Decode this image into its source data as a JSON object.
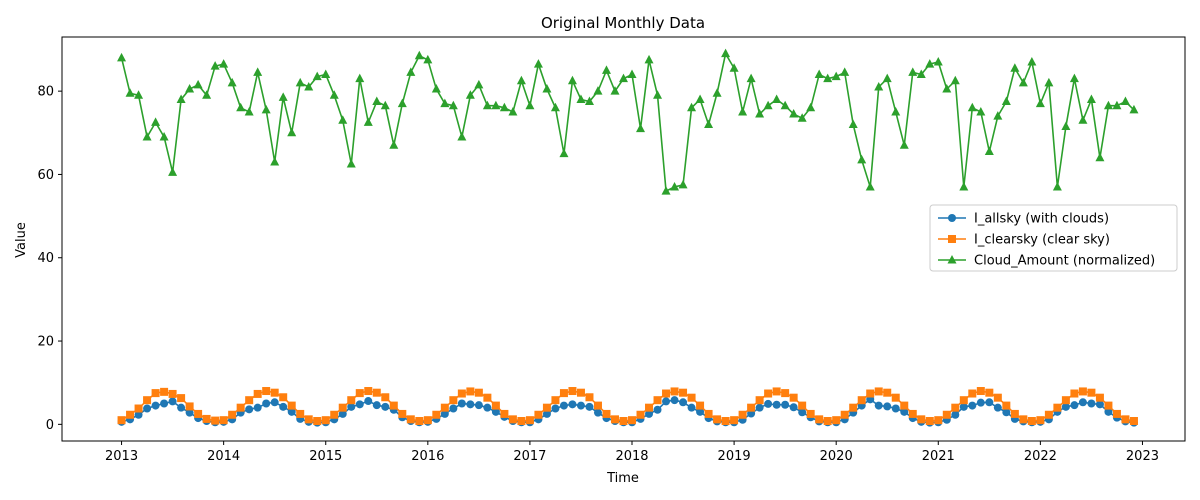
{
  "chart_data": {
    "type": "line",
    "title": "Original Monthly Data",
    "xlabel": "Time",
    "ylabel": "Value",
    "x_start": "2013-01",
    "x_frequency": "monthly",
    "xlim": [
      "2012-06",
      "2023-06"
    ],
    "ylim": [
      -4,
      93
    ],
    "x_ticks": [
      "2013",
      "2014",
      "2015",
      "2016",
      "2017",
      "2018",
      "2019",
      "2020",
      "2021",
      "2022",
      "2023"
    ],
    "y_ticks": [
      0,
      20,
      40,
      60,
      80
    ],
    "grid": false,
    "legend_position": "center-right",
    "series": [
      {
        "name": "I_allsky (with clouds)",
        "color": "#1f77b4",
        "marker": "circle",
        "values": [
          0.6,
          1.2,
          2.3,
          3.8,
          4.5,
          5.0,
          5.5,
          4.0,
          2.8,
          1.5,
          0.8,
          0.5,
          0.6,
          1.2,
          2.8,
          3.6,
          4.0,
          5.0,
          5.3,
          4.2,
          3.0,
          1.3,
          0.6,
          0.4,
          0.5,
          1.2,
          2.5,
          4.2,
          4.8,
          5.6,
          4.6,
          4.2,
          3.5,
          1.7,
          0.8,
          0.5,
          0.6,
          1.3,
          2.5,
          3.8,
          5.0,
          4.8,
          4.6,
          4.0,
          3.0,
          1.8,
          0.8,
          0.5,
          0.5,
          1.2,
          2.5,
          3.8,
          4.5,
          4.8,
          4.5,
          4.2,
          2.8,
          1.5,
          0.8,
          0.5,
          0.5,
          1.3,
          2.5,
          3.5,
          5.5,
          5.8,
          5.3,
          4.0,
          3.0,
          1.5,
          0.7,
          0.5,
          0.5,
          1.1,
          2.6,
          4.0,
          4.9,
          4.7,
          4.7,
          4.1,
          2.9,
          1.7,
          0.7,
          0.5,
          0.5,
          1.2,
          2.8,
          4.5,
          6.0,
          4.5,
          4.3,
          3.8,
          3.0,
          1.5,
          0.6,
          0.4,
          0.5,
          1.1,
          2.3,
          4.2,
          4.5,
          5.2,
          5.3,
          4.0,
          2.9,
          1.3,
          0.7,
          0.5,
          0.6,
          1.2,
          3.0,
          4.2,
          4.6,
          5.3,
          5.0,
          4.8,
          3.0,
          1.6,
          0.7,
          0.4
        ]
      },
      {
        "name": "I_clearsky (clear sky)",
        "color": "#ff7f0e",
        "marker": "square",
        "values": [
          1.0,
          2.3,
          3.8,
          5.8,
          7.5,
          7.8,
          7.3,
          6.3,
          4.3,
          2.5,
          1.3,
          0.9,
          1.0,
          2.3,
          4.0,
          5.8,
          7.3,
          8.0,
          7.6,
          6.5,
          4.5,
          2.5,
          1.2,
          0.8,
          1.0,
          2.3,
          4.0,
          5.8,
          7.5,
          8.0,
          7.6,
          6.5,
          4.5,
          2.5,
          1.2,
          0.8,
          1.0,
          2.3,
          4.0,
          5.8,
          7.4,
          7.9,
          7.6,
          6.4,
          4.5,
          2.5,
          1.2,
          0.8,
          1.0,
          2.3,
          4.0,
          5.8,
          7.5,
          8.0,
          7.6,
          6.5,
          4.5,
          2.5,
          1.2,
          0.8,
          1.0,
          2.3,
          4.0,
          5.8,
          7.4,
          7.9,
          7.6,
          6.4,
          4.5,
          2.5,
          1.2,
          0.8,
          1.0,
          2.3,
          4.0,
          5.8,
          7.4,
          7.9,
          7.5,
          6.4,
          4.5,
          2.5,
          1.2,
          0.8,
          1.0,
          2.3,
          4.0,
          5.8,
          7.4,
          7.9,
          7.6,
          6.4,
          4.5,
          2.5,
          1.2,
          0.8,
          1.0,
          2.3,
          4.0,
          5.8,
          7.4,
          8.0,
          7.6,
          6.4,
          4.5,
          2.5,
          1.2,
          0.8,
          1.0,
          2.3,
          4.0,
          5.8,
          7.4,
          7.9,
          7.6,
          6.4,
          4.5,
          2.5,
          1.2,
          0.8
        ]
      },
      {
        "name": "Cloud_Amount (normalized)",
        "color": "#2ca02c",
        "marker": "triangle",
        "values": [
          88.0,
          79.5,
          79.0,
          69.0,
          72.5,
          69.0,
          60.5,
          78.0,
          80.5,
          81.5,
          79.0,
          86.0,
          86.5,
          82.0,
          76.0,
          75.0,
          84.5,
          75.5,
          63.0,
          78.5,
          70.0,
          82.0,
          81.0,
          83.5,
          84.0,
          79.0,
          73.0,
          62.5,
          83.0,
          72.5,
          77.5,
          76.5,
          67.0,
          77.0,
          84.5,
          88.5,
          87.5,
          80.5,
          77.0,
          76.5,
          69.0,
          79.0,
          81.5,
          76.5,
          76.5,
          76.0,
          75.0,
          82.5,
          76.5,
          86.5,
          80.5,
          76.0,
          65.0,
          82.5,
          78.0,
          77.5,
          80.0,
          85.0,
          80.0,
          83.0,
          84.0,
          71.0,
          87.5,
          79.0,
          56.0,
          57.0,
          57.5,
          76.0,
          78.0,
          72.0,
          79.5,
          89.0,
          85.5,
          75.0,
          83.0,
          74.5,
          76.5,
          78.0,
          76.5,
          74.5,
          73.5,
          76.0,
          84.0,
          83.0,
          83.5,
          84.5,
          72.0,
          63.5,
          57.0,
          81.0,
          83.0,
          75.0,
          67.0,
          84.5,
          84.0,
          86.5,
          87.0,
          80.5,
          82.5,
          57.0,
          76.0,
          75.0,
          65.5,
          74.0,
          77.5,
          85.5,
          82.0,
          87.0,
          77.0,
          82.0,
          57.0,
          71.5,
          83.0,
          73.0,
          78.0,
          64.0,
          76.5,
          76.5,
          77.5,
          75.5
        ]
      }
    ]
  }
}
